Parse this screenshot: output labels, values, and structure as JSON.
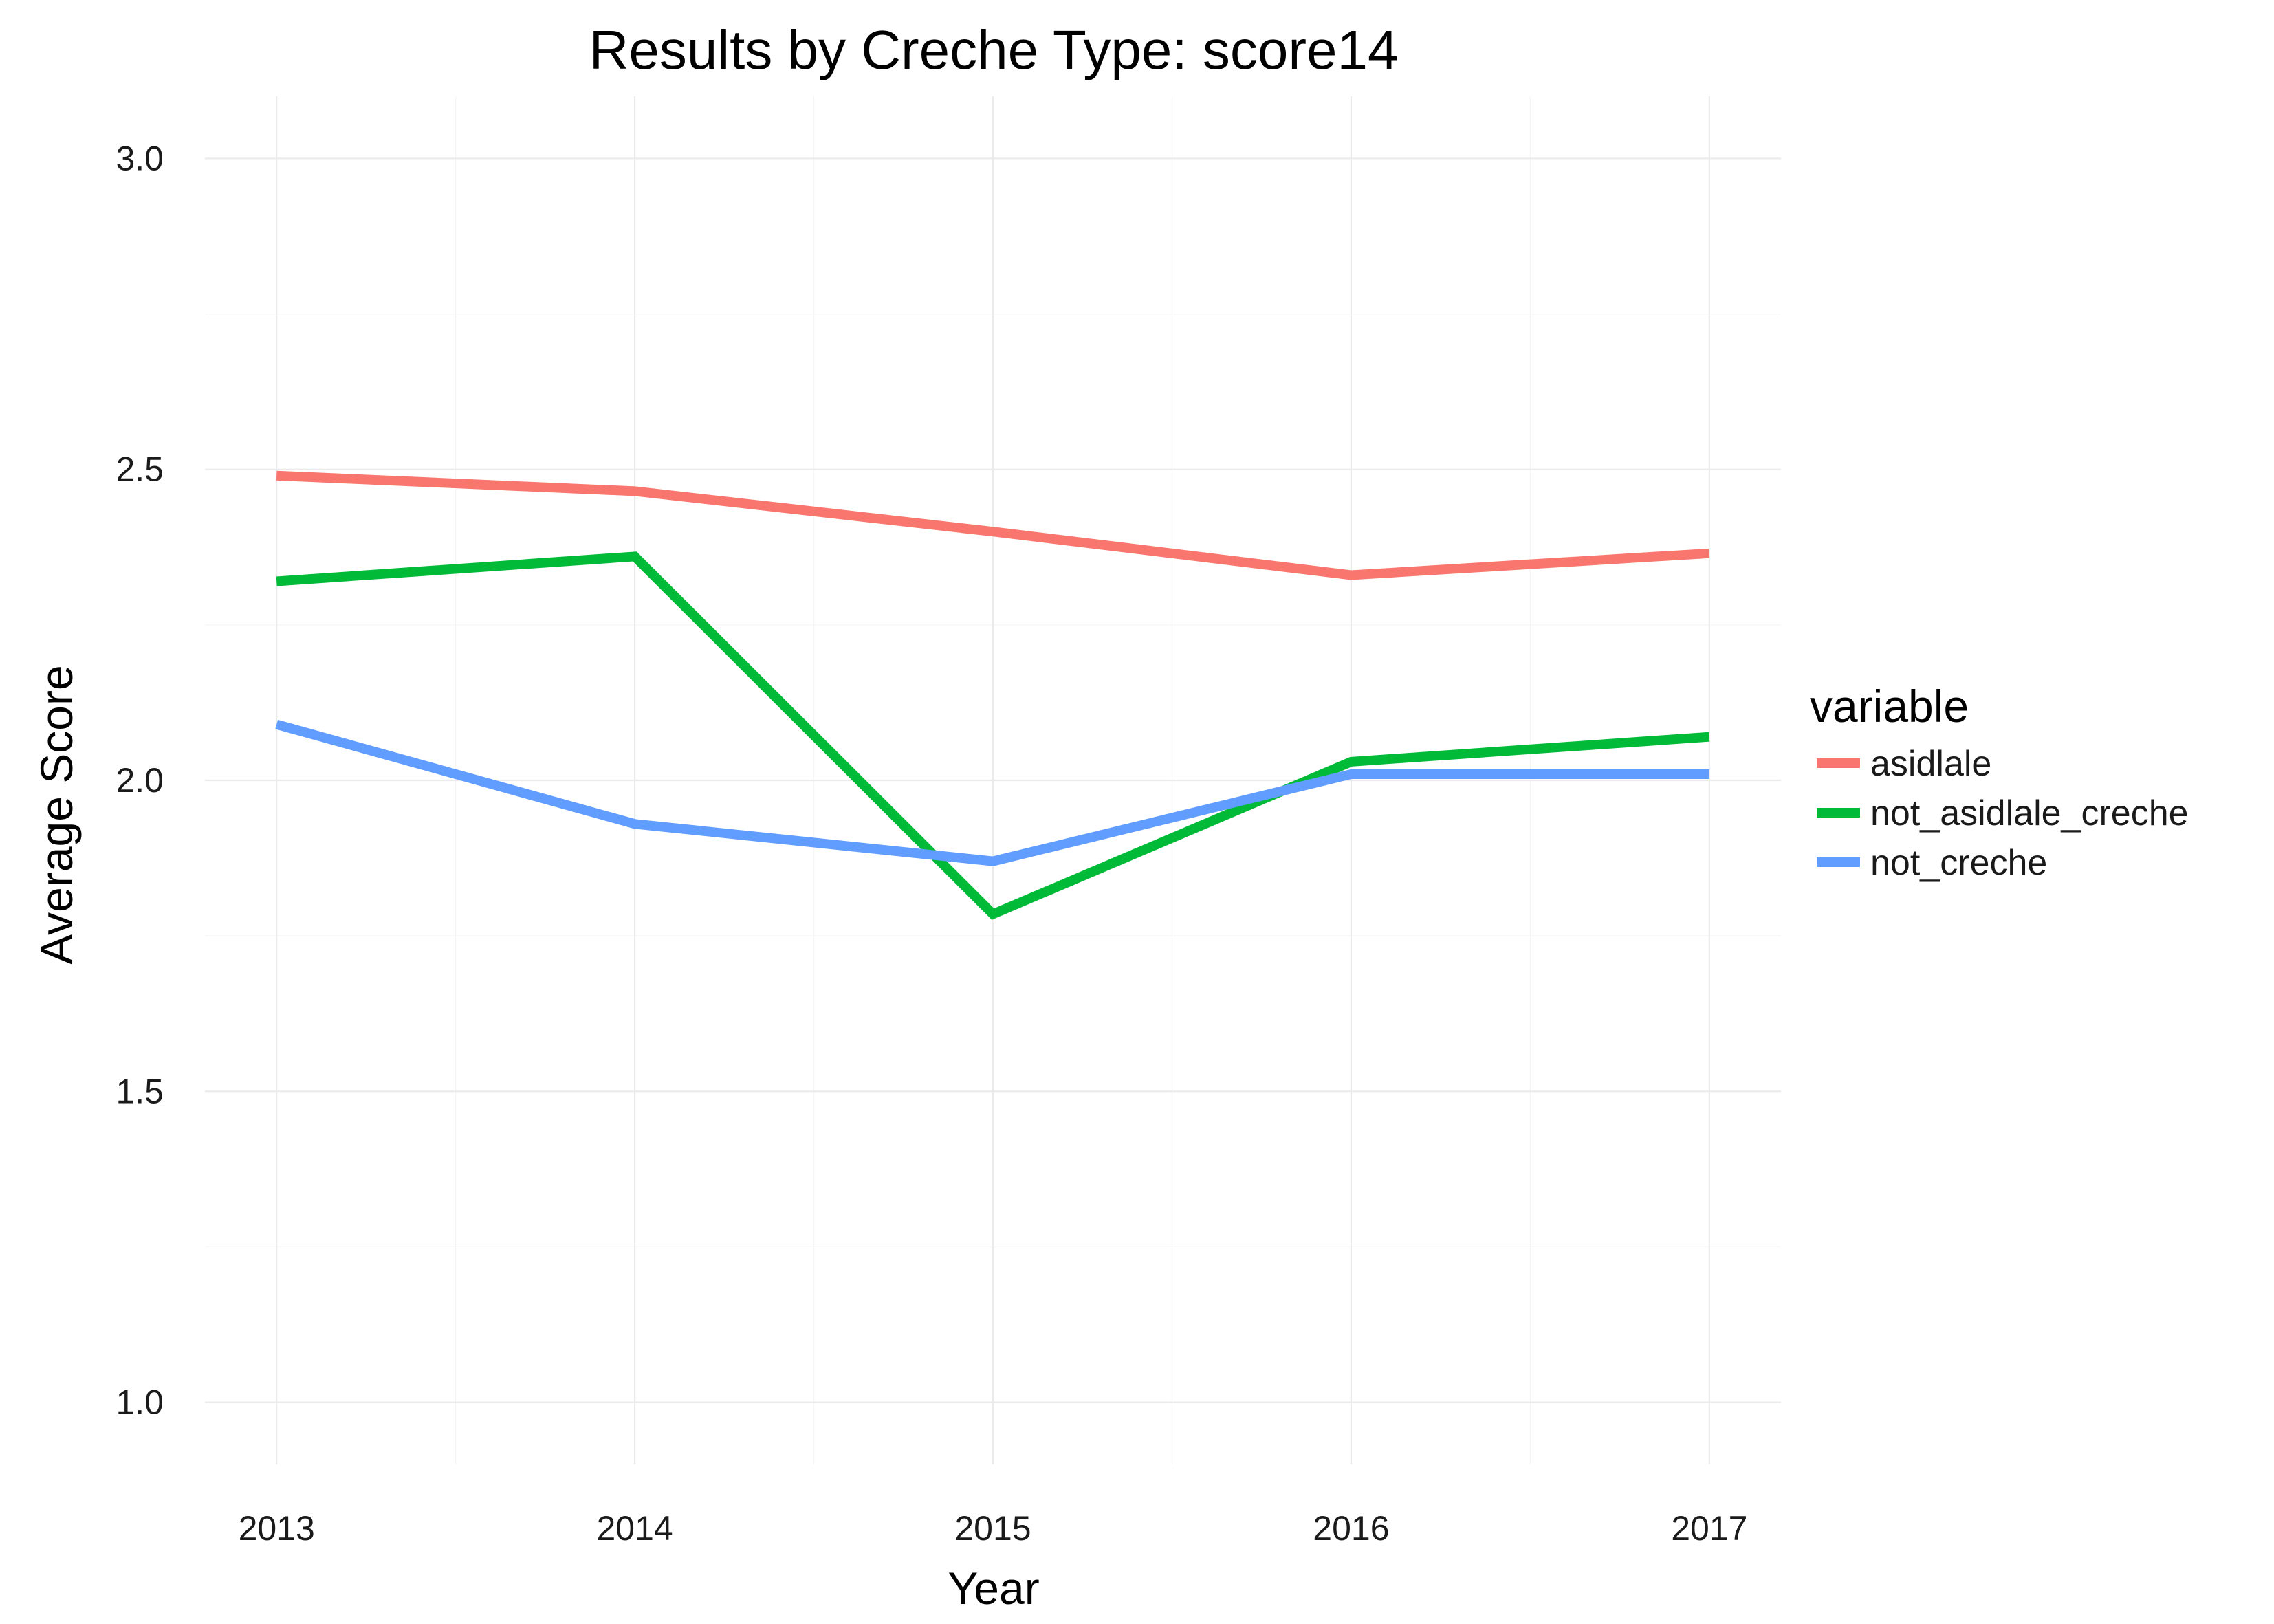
{
  "chart_data": {
    "type": "line",
    "title": "Results by Creche Type: score14",
    "xlabel": "Year",
    "ylabel": "Average Score",
    "x": [
      2013,
      2014,
      2015,
      2016,
      2017
    ],
    "x_tick_labels": [
      "2013",
      "2014",
      "2015",
      "2016",
      "2017"
    ],
    "y_tick_labels": [
      "1.0",
      "1.5",
      "2.0",
      "2.5",
      "3.0"
    ],
    "y_ticks": [
      1.0,
      1.5,
      2.0,
      2.5,
      3.0
    ],
    "xlim": [
      2012.8,
      2017.2
    ],
    "ylim": [
      0.9,
      3.1
    ],
    "grid": true,
    "legend": {
      "title": "variable",
      "placement": "right"
    },
    "series": [
      {
        "name": "asidlale",
        "color": "#F8766D",
        "values": [
          2.49,
          2.465,
          2.4,
          2.33,
          2.365
        ]
      },
      {
        "name": "not_asidlale_creche",
        "color": "#00BA38",
        "values": [
          2.32,
          2.36,
          1.785,
          2.03,
          2.07
        ]
      },
      {
        "name": "not_creche",
        "color": "#619CFF",
        "values": [
          2.09,
          1.93,
          1.87,
          2.01,
          2.01
        ]
      }
    ]
  }
}
